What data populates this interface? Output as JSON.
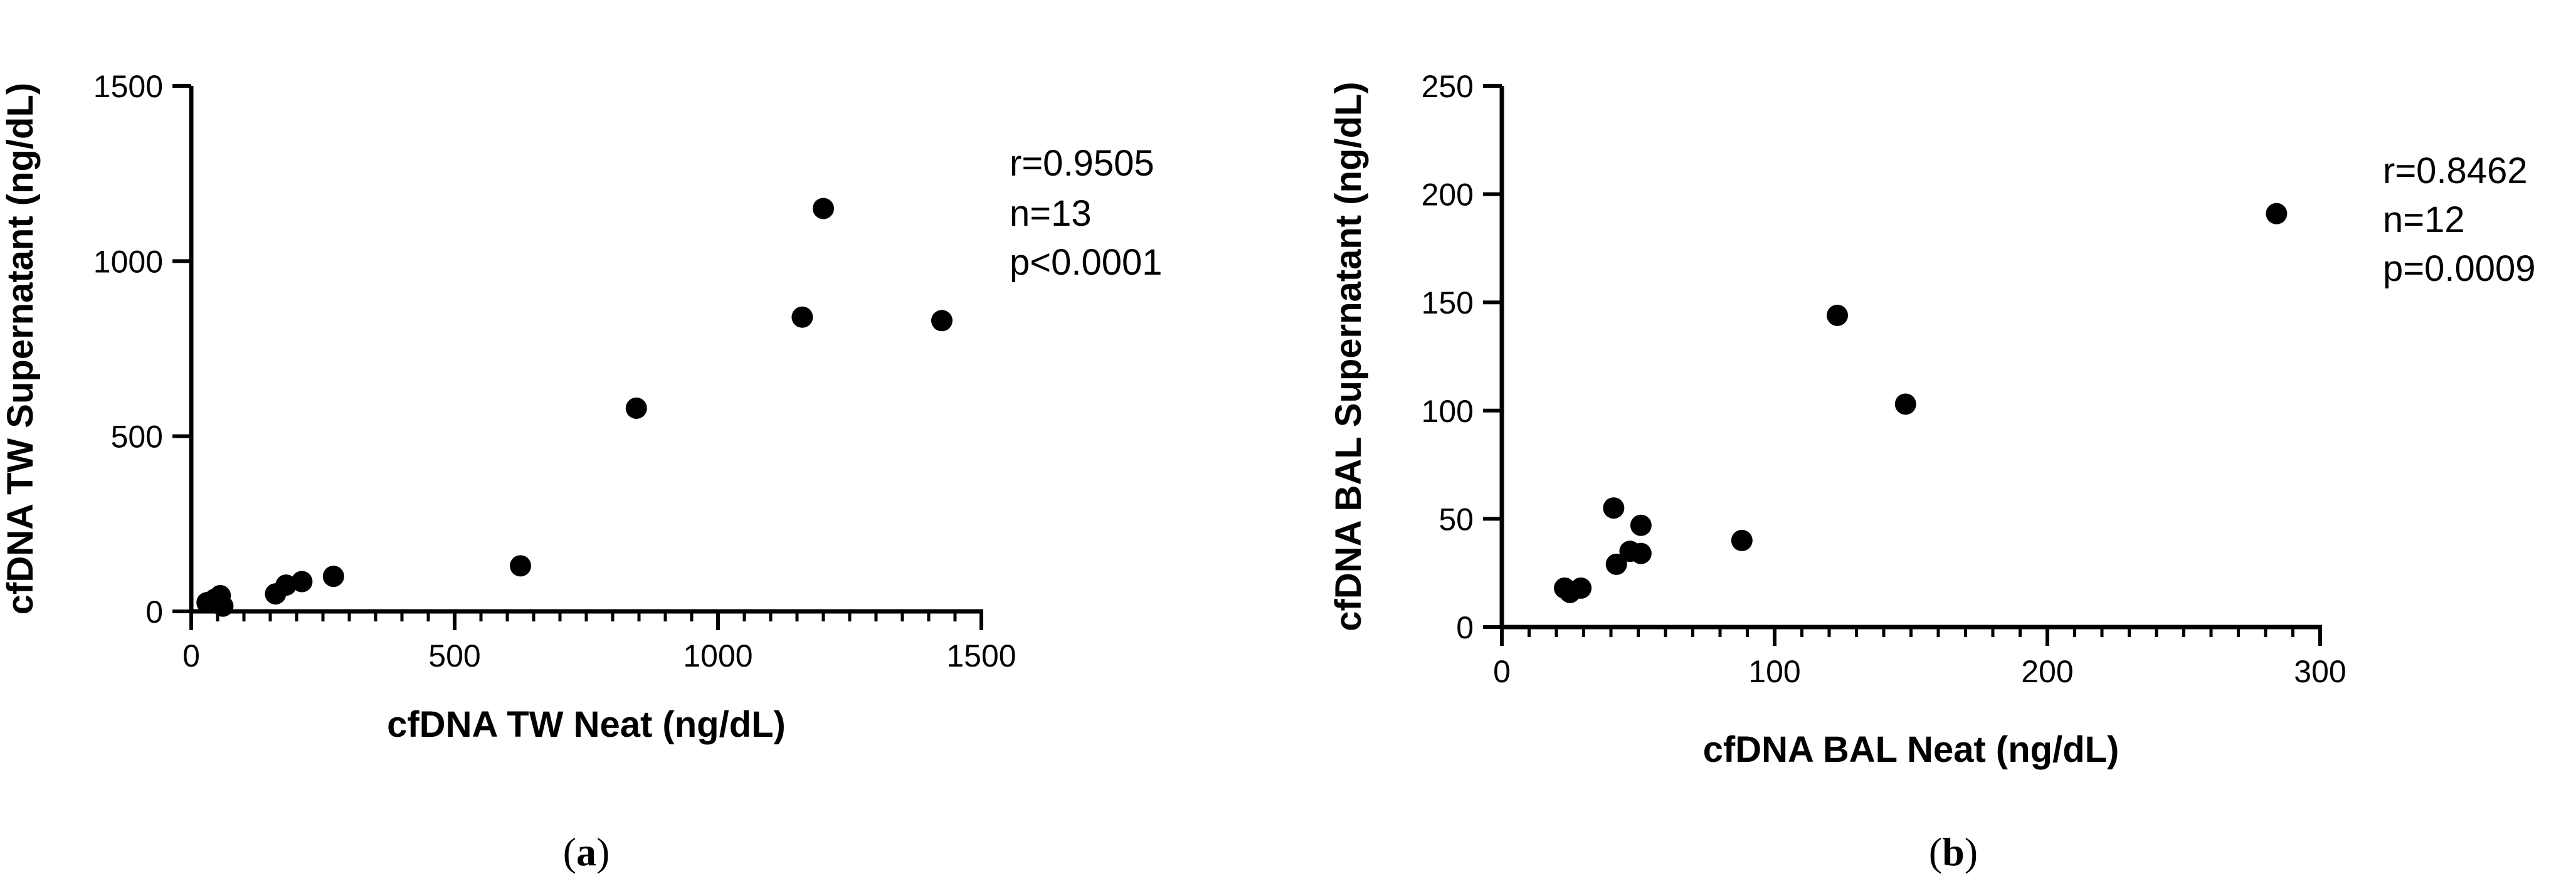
{
  "chart_data": [
    {
      "type": "scatter",
      "panel_label": "a",
      "xlabel": "cfDNA TW Neat (ng/dL)",
      "ylabel": "cfDNA TW Supernatant (ng/dL)",
      "xlim": [
        0,
        1500
      ],
      "ylim": [
        0,
        1500
      ],
      "xticks": [
        0,
        500,
        1000,
        1500
      ],
      "yticks": [
        0,
        500,
        1000,
        1500
      ],
      "x_minor_step": 50,
      "grid": false,
      "annotations": [
        "r=0.9505",
        "n=13",
        "p<0.0001"
      ],
      "points": [
        {
          "x": 30,
          "y": 25
        },
        {
          "x": 45,
          "y": 35
        },
        {
          "x": 55,
          "y": 45
        },
        {
          "x": 60,
          "y": 15
        },
        {
          "x": 160,
          "y": 50
        },
        {
          "x": 180,
          "y": 75
        },
        {
          "x": 210,
          "y": 85
        },
        {
          "x": 270,
          "y": 100
        },
        {
          "x": 625,
          "y": 130
        },
        {
          "x": 845,
          "y": 580
        },
        {
          "x": 1160,
          "y": 840
        },
        {
          "x": 1200,
          "y": 1150
        },
        {
          "x": 1425,
          "y": 830
        }
      ]
    },
    {
      "type": "scatter",
      "panel_label": "b",
      "xlabel": "cfDNA BAL Neat (ng/dL)",
      "ylabel": "cfDNA BAL Supernatant (ng/dL)",
      "xlim": [
        0,
        300
      ],
      "ylim": [
        0,
        250
      ],
      "xticks": [
        0,
        100,
        200,
        300
      ],
      "yticks": [
        0,
        50,
        100,
        150,
        200,
        250
      ],
      "x_minor_step": 10,
      "grid": false,
      "annotations": [
        "r=0.8462",
        "n=12",
        "p=0.0009"
      ],
      "points": [
        {
          "x": 23,
          "y": 18
        },
        {
          "x": 25,
          "y": 16
        },
        {
          "x": 29,
          "y": 18
        },
        {
          "x": 41,
          "y": 55
        },
        {
          "x": 42,
          "y": 29
        },
        {
          "x": 47,
          "y": 35
        },
        {
          "x": 51,
          "y": 34
        },
        {
          "x": 51,
          "y": 47
        },
        {
          "x": 88,
          "y": 40
        },
        {
          "x": 123,
          "y": 144
        },
        {
          "x": 148,
          "y": 103
        },
        {
          "x": 284,
          "y": 191
        }
      ]
    }
  ]
}
